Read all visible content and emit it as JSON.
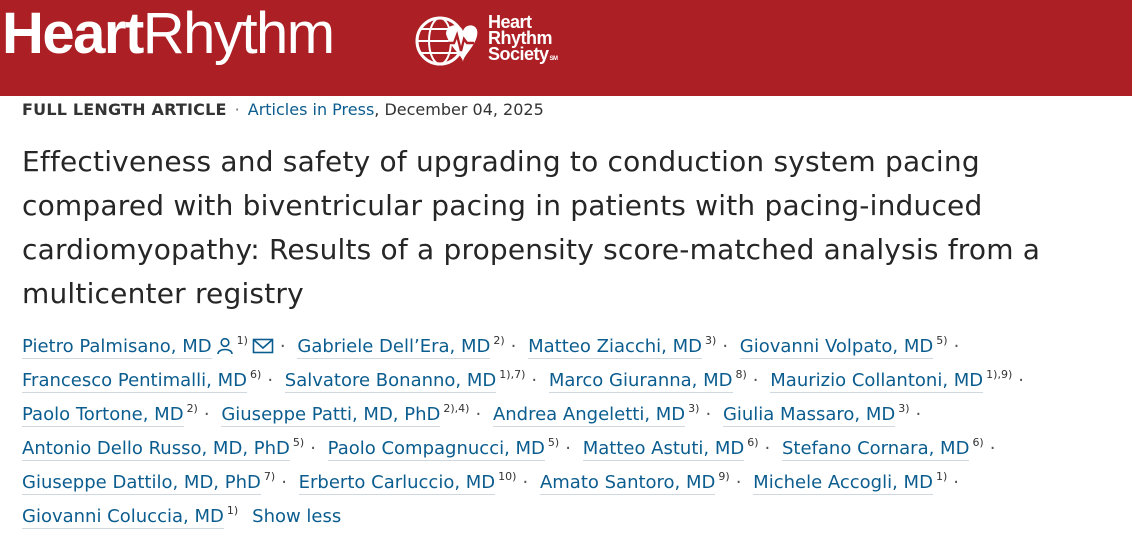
{
  "header": {
    "journal_bold": "Heart",
    "journal_light": "Rhythm",
    "society_lines": [
      "Heart",
      "Rhythm",
      "Society"
    ],
    "society_mark": "SM",
    "colors": {
      "banner": "#ac1f24",
      "link": "#0c5d8f"
    }
  },
  "article": {
    "type": "FULL LENGTH ARTICLE",
    "separator": "·",
    "section": "Articles in Press",
    "date": ", December 04, 2025",
    "title_lines": [
      "Effectiveness and safety of upgrading to conduction system pacing",
      "compared with biventricular pacing in patients with pacing-induced",
      "cardiomyopathy: Results of a propensity score-matched analysis from a",
      "multicenter registry"
    ]
  },
  "authors": [
    {
      "name": "Pietro Palmisano, MD",
      "sup": "1)",
      "icons": [
        "person-icon",
        "mail-icon"
      ]
    },
    {
      "name": "Gabriele Dell’Era, MD",
      "sup": "2)"
    },
    {
      "name": "Matteo Ziacchi, MD",
      "sup": "3)"
    },
    {
      "name": "Giovanni Volpato, MD",
      "sup": "5)"
    },
    {
      "name": "Francesco Pentimalli, MD",
      "sup": "6)"
    },
    {
      "name": "Salvatore Bonanno, MD",
      "sup": "1),7)"
    },
    {
      "name": "Marco Giuranna, MD",
      "sup": "8)"
    },
    {
      "name": "Maurizio Collantoni, MD",
      "sup": "1),9)"
    },
    {
      "name": "Paolo Tortone, MD",
      "sup": "2)"
    },
    {
      "name": "Giuseppe Patti, MD, PhD",
      "sup": "2),4)"
    },
    {
      "name": "Andrea Angeletti, MD",
      "sup": "3)"
    },
    {
      "name": "Giulia Massaro, MD",
      "sup": "3)"
    },
    {
      "name": "Antonio Dello Russo, MD, PhD",
      "sup": "5)"
    },
    {
      "name": "Paolo Compagnucci, MD",
      "sup": "5)"
    },
    {
      "name": "Matteo Astuti, MD",
      "sup": "6)"
    },
    {
      "name": "Stefano Cornara, MD",
      "sup": "6)"
    },
    {
      "name": "Giuseppe Dattilo, MD, PhD",
      "sup": "7)"
    },
    {
      "name": "Erberto Carluccio, MD",
      "sup": "10)"
    },
    {
      "name": "Amato Santoro, MD",
      "sup": "9)"
    },
    {
      "name": "Michele Accogli, MD",
      "sup": "1)"
    },
    {
      "name": "Giovanni Coluccia, MD",
      "sup": "1)"
    }
  ],
  "author_separator": "·",
  "show_less_label": "Show less"
}
